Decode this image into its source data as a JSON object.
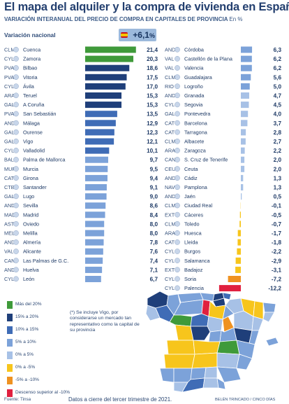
{
  "header": {
    "title": "El mapa del alquiler y la compra de vivienda en España",
    "subtitle": "VARIACIÓN INTERANUAL DEL PRECIO DE COMPRA EN CAPITALES DE PROVINCIA",
    "unit": "En %"
  },
  "national": {
    "label": "Variación nacional",
    "value": "+6,1",
    "unit": "%"
  },
  "colors": {
    "cat_gt20": "#3f9a3a",
    "cat_15_20": "#1f3f7a",
    "cat_10_15": "#3f6cb6",
    "cat_5_10": "#7ca2d9",
    "cat_0_5": "#a7c1e6",
    "cat_0_m5": "#f7c51c",
    "cat_m5_m10": "#ef9221",
    "cat_lt_m10": "#e0203f"
  },
  "chart_data": {
    "type": "bar",
    "title": "El mapa del alquiler y la compra de vivienda en España",
    "subtitle": "VARIACIÓN INTERANUAL DEL PRECIO DE COMPRA EN CAPITALES DE PROVINCIA",
    "unit": "%",
    "orientation": "horizontal",
    "national_value": 6.1,
    "columns": [
      {
        "rows": [
          {
            "code": "CLM",
            "city": "Cuenca",
            "value": 21.4,
            "label": "21,4",
            "cat": "cat_gt20"
          },
          {
            "code": "CYL",
            "city": "Zamora",
            "value": 20.3,
            "label": "20,3",
            "cat": "cat_gt20"
          },
          {
            "code": "PVA",
            "city": "Bilbao",
            "value": 18.6,
            "label": "18,6",
            "cat": "cat_15_20"
          },
          {
            "code": "PVA",
            "city": "Vitoria",
            "value": 17.5,
            "label": "17,5",
            "cat": "cat_15_20"
          },
          {
            "code": "CYL",
            "city": "Ávila",
            "value": 17.0,
            "label": "17,0",
            "cat": "cat_15_20"
          },
          {
            "code": "ARA",
            "city": "Teruel",
            "value": 15.3,
            "label": "15,3",
            "cat": "cat_15_20"
          },
          {
            "code": "GAL",
            "city": "A Coruña",
            "value": 15.3,
            "label": "15,3",
            "cat": "cat_15_20"
          },
          {
            "code": "PVA",
            "city": "San Sebastián",
            "value": 13.5,
            "label": "13,5",
            "cat": "cat_10_15"
          },
          {
            "code": "AND",
            "city": "Málaga",
            "value": 12.9,
            "label": "12,9",
            "cat": "cat_10_15"
          },
          {
            "code": "GAL",
            "city": "Ourense",
            "value": 12.3,
            "label": "12,3",
            "cat": "cat_10_15"
          },
          {
            "code": "GAL",
            "city": "Vigo",
            "value": 12.1,
            "label": "12,1",
            "cat": "cat_10_15"
          },
          {
            "code": "CYL",
            "city": "Valladolid",
            "value": 10.1,
            "label": "10,1",
            "cat": "cat_10_15"
          },
          {
            "code": "BAL",
            "city": "Palma de Mallorca",
            "value": 9.7,
            "label": "9,7",
            "cat": "cat_5_10"
          },
          {
            "code": "MUR",
            "city": "Murcia",
            "value": 9.5,
            "label": "9,5",
            "cat": "cat_5_10"
          },
          {
            "code": "CAT",
            "city": "Girona",
            "value": 9.4,
            "label": "9,4",
            "cat": "cat_5_10"
          },
          {
            "code": "CTB",
            "city": "Santander",
            "value": 9.1,
            "label": "9,1",
            "cat": "cat_5_10"
          },
          {
            "code": "GAL",
            "city": "Lugo",
            "value": 9.0,
            "label": "9,0",
            "cat": "cat_5_10"
          },
          {
            "code": "AND",
            "city": "Sevilla",
            "value": 8.6,
            "label": "8,6",
            "cat": "cat_5_10"
          },
          {
            "code": "MAD",
            "city": "Madrid",
            "value": 8.4,
            "label": "8,4",
            "cat": "cat_5_10"
          },
          {
            "code": "AST",
            "city": "Oviedo",
            "value": 8.0,
            "label": "8,0",
            "cat": "cat_5_10"
          },
          {
            "code": "MEL",
            "city": "Melilla",
            "value": 8.0,
            "label": "8,0",
            "cat": "cat_5_10"
          },
          {
            "code": "AND",
            "city": "Almería",
            "value": 7.8,
            "label": "7,8",
            "cat": "cat_5_10"
          },
          {
            "code": "VAL",
            "city": "Alicante",
            "value": 7.6,
            "label": "7,6",
            "cat": "cat_5_10"
          },
          {
            "code": "CAN",
            "city": "Las Palmas de G.C.",
            "value": 7.4,
            "label": "7,4",
            "cat": "cat_5_10"
          },
          {
            "code": "AND",
            "city": "Huelva",
            "value": 7.1,
            "label": "7,1",
            "cat": "cat_5_10"
          },
          {
            "code": "CYL",
            "city": "León",
            "value": 6.7,
            "label": "6,7",
            "cat": "cat_5_10"
          }
        ]
      },
      {
        "rows": [
          {
            "code": "AND",
            "city": "Córdoba",
            "value": 6.3,
            "label": "6,3",
            "cat": "cat_5_10"
          },
          {
            "code": "VAL",
            "city": "Castellón de la Plana",
            "value": 6.2,
            "label": "6,2",
            "cat": "cat_5_10"
          },
          {
            "code": "VAL",
            "city": "Valencia",
            "value": 6.2,
            "label": "6,2",
            "cat": "cat_5_10"
          },
          {
            "code": "CLM",
            "city": "Guadalajara",
            "value": 5.6,
            "label": "5,6",
            "cat": "cat_5_10"
          },
          {
            "code": "RIO",
            "city": "Logroño",
            "value": 5.0,
            "label": "5,0",
            "cat": "cat_5_10"
          },
          {
            "code": "AND",
            "city": "Granada",
            "value": 4.7,
            "label": "4,7",
            "cat": "cat_0_5"
          },
          {
            "code": "CYL",
            "city": "Segovia",
            "value": 4.5,
            "label": "4,5",
            "cat": "cat_0_5"
          },
          {
            "code": "GAL",
            "city": "Pontevedra",
            "value": 4.0,
            "label": "4,0",
            "cat": "cat_0_5"
          },
          {
            "code": "CAT",
            "city": "Barcelona",
            "value": 3.7,
            "label": "3,7",
            "cat": "cat_0_5"
          },
          {
            "code": "CAT",
            "city": "Tarragona",
            "value": 2.8,
            "label": "2,8",
            "cat": "cat_0_5"
          },
          {
            "code": "CLM",
            "city": "Albacete",
            "value": 2.7,
            "label": "2,7",
            "cat": "cat_0_5"
          },
          {
            "code": "ARA",
            "city": "Zaragoza",
            "value": 2.2,
            "label": "2,2",
            "cat": "cat_0_5"
          },
          {
            "code": "CAN",
            "city": "S. Cruz de Tenerife",
            "value": 2.0,
            "label": "2,0",
            "cat": "cat_0_5"
          },
          {
            "code": "CEU",
            "city": "Ceuta",
            "value": 2.0,
            "label": "2,0",
            "cat": "cat_0_5"
          },
          {
            "code": "AND",
            "city": "Cádiz",
            "value": 1.3,
            "label": "1,3",
            "cat": "cat_0_5"
          },
          {
            "code": "NAV",
            "city": "Pamplona",
            "value": 1.3,
            "label": "1,3",
            "cat": "cat_0_5"
          },
          {
            "code": "AND",
            "city": "Jaén",
            "value": 0.5,
            "label": "0,5",
            "cat": "cat_0_5"
          },
          {
            "code": "CLM",
            "city": "Ciudad Real",
            "value": -0.1,
            "label": "-0,1",
            "cat": "cat_0_m5"
          },
          {
            "code": "EXT",
            "city": "Cáceres",
            "value": -0.5,
            "label": "-0,5",
            "cat": "cat_0_m5"
          },
          {
            "code": "CLM",
            "city": "Toledo",
            "value": -0.7,
            "label": "-0,7",
            "cat": "cat_0_m5"
          },
          {
            "code": "ARA",
            "city": "Huesca",
            "value": -1.7,
            "label": "-1,7",
            "cat": "cat_0_m5"
          },
          {
            "code": "CAT",
            "city": "Lleida",
            "value": -1.8,
            "label": "-1,8",
            "cat": "cat_0_m5"
          },
          {
            "code": "CYL",
            "city": "Burgos",
            "value": -2.2,
            "label": "-2,2",
            "cat": "cat_0_m5"
          },
          {
            "code": "CYL",
            "city": "Salamanca",
            "value": -2.9,
            "label": "-2,9",
            "cat": "cat_0_m5"
          },
          {
            "code": "EXT",
            "city": "Badajoz",
            "value": -3.1,
            "label": "-3,1",
            "cat": "cat_0_m5"
          },
          {
            "code": "CYL",
            "city": "Soria",
            "value": -7.2,
            "label": "-7,2",
            "cat": "cat_m5_m10"
          },
          {
            "code": "CYL",
            "city": "Palencia",
            "value": -12.2,
            "label": "-12,2",
            "cat": "cat_lt_m10"
          }
        ]
      }
    ]
  },
  "legend": [
    {
      "label": "Más del 20%",
      "cat": "cat_gt20"
    },
    {
      "label": "15% a 20%",
      "cat": "cat_15_20"
    },
    {
      "label": "10% a 15%",
      "cat": "cat_10_15"
    },
    {
      "label": "5% a 10%",
      "cat": "cat_5_10"
    },
    {
      "label": "0% a 5%",
      "cat": "cat_0_5"
    },
    {
      "label": "0% a -5%",
      "cat": "cat_0_m5"
    },
    {
      "label": "-5% a -10%",
      "cat": "cat_m5_m10"
    },
    {
      "label": "Descenso superior al -10%",
      "cat": "cat_lt_m10"
    }
  ],
  "map_note": "(*) Se incluye Vigo, por considerarse un mercado tan representativo como la capital de su provincia",
  "footer": {
    "source": "Fuente: Tinsa",
    "note": "Datos a cierre del tercer trimestre de 2021.",
    "credit": "BELÉN TRINCADO / CINCO DÍAS"
  }
}
